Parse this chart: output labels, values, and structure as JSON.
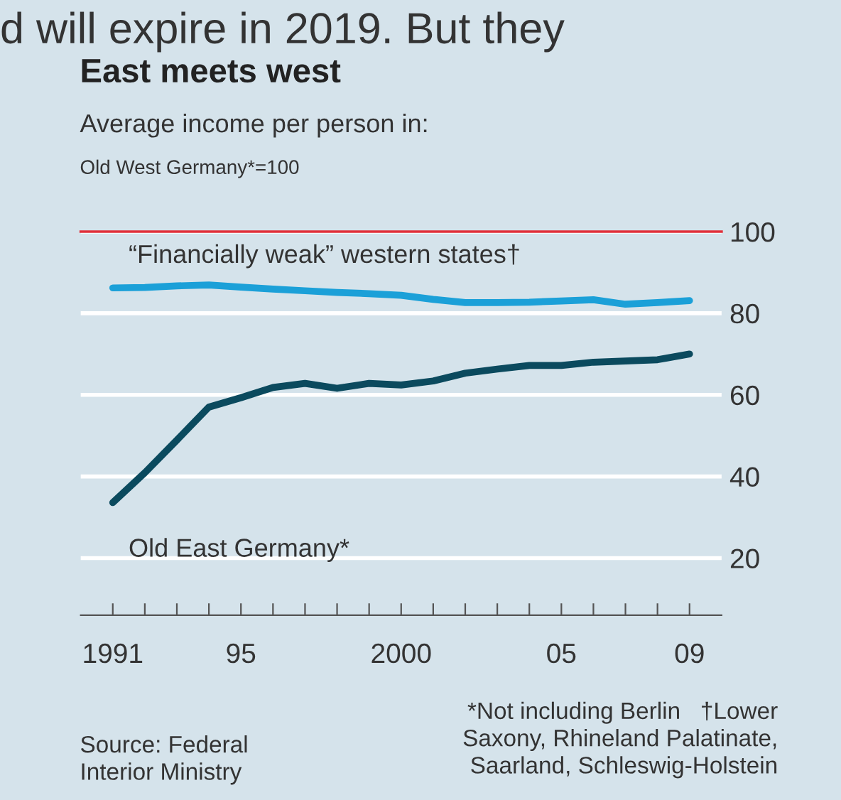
{
  "chart_data": {
    "type": "line",
    "title": "East meets west",
    "subtitle": "Average income per person in:",
    "ylabel": "Old West Germany*=100",
    "x": [
      1991,
      1992,
      1993,
      1994,
      1995,
      1996,
      1997,
      1998,
      1999,
      2000,
      2001,
      2002,
      2003,
      2004,
      2005,
      2006,
      2007,
      2008,
      2009
    ],
    "series": [
      {
        "name": "“Financially weak” western states†",
        "color": "#1ba0d8",
        "values": [
          86.2,
          86.3,
          86.7,
          86.9,
          86.4,
          85.9,
          85.5,
          85.1,
          84.8,
          84.4,
          83.4,
          82.6,
          82.6,
          82.7,
          83.0,
          83.3,
          82.2,
          82.6,
          83.1
        ]
      },
      {
        "name": "Old East Germany*",
        "color": "#0b4a5e",
        "values": [
          33.6,
          40.9,
          48.9,
          57.0,
          59.3,
          61.8,
          62.8,
          61.6,
          62.8,
          62.4,
          63.4,
          65.3,
          66.3,
          67.2,
          67.2,
          68.0,
          68.3,
          68.6,
          70.0
        ]
      }
    ],
    "xlim": [
      1990,
      2010
    ],
    "ylim": [
      6,
      100
    ],
    "xticks": [
      1991,
      {
        "value": 1992,
        "label": null
      },
      {
        "value": 1993,
        "label": null
      },
      {
        "value": 1994,
        "label": null
      },
      {
        "value": 1995,
        "label": "95"
      },
      {
        "value": 1996,
        "label": null
      },
      {
        "value": 1997,
        "label": null
      },
      {
        "value": 1998,
        "label": null
      },
      {
        "value": 1999,
        "label": null
      },
      2000,
      {
        "value": 2001,
        "label": null
      },
      {
        "value": 2002,
        "label": null
      },
      {
        "value": 2003,
        "label": null
      },
      {
        "value": 2004,
        "label": null
      },
      {
        "value": 2005,
        "label": "05"
      },
      {
        "value": 2006,
        "label": null
      },
      {
        "value": 2007,
        "label": null
      },
      {
        "value": 2008,
        "label": null
      },
      {
        "value": 2009,
        "label": "09"
      }
    ],
    "yticks": [
      20,
      40,
      60,
      80,
      100
    ],
    "ref_lines": [
      {
        "axis": "y",
        "value": 100,
        "label": null,
        "color": "#e0303a"
      }
    ],
    "grid": "y",
    "legend": false,
    "marker": "none",
    "line_style": "solid",
    "annotations": [
      "d will expire in 2019. But they",
      "Source: Federal\nInterior Ministry",
      "*Not including Berlin   †Lower\nSaxony, Rhineland Palatinate,\nSaarland, Schleswig-Holstein"
    ]
  }
}
